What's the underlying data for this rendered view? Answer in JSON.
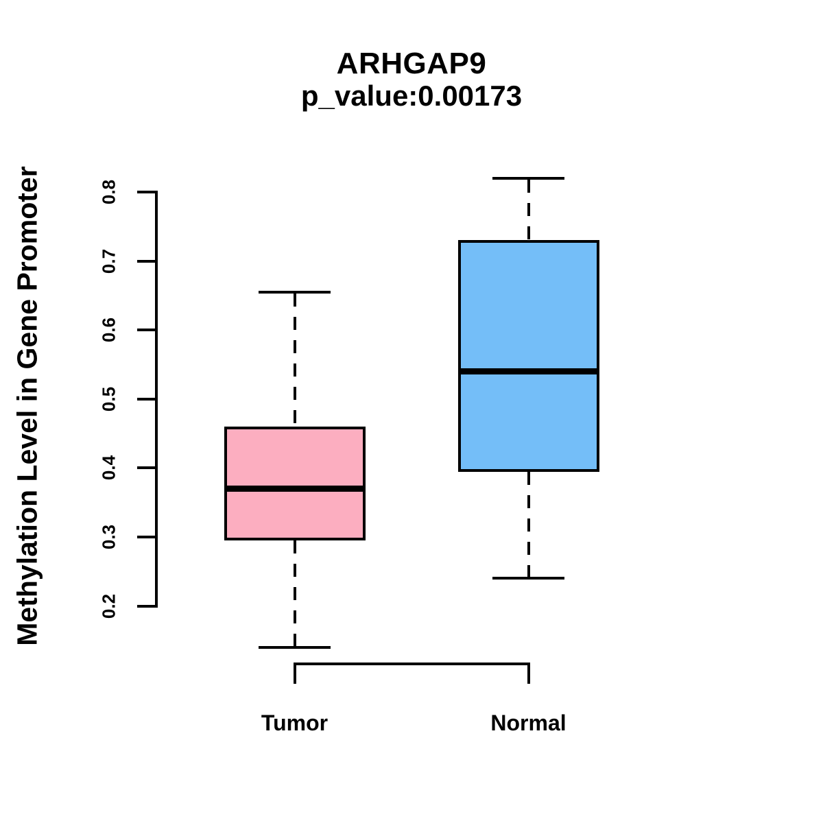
{
  "figure": {
    "background": "#ffffff",
    "text_color": "#000000"
  },
  "chart_data": {
    "type": "boxplot",
    "title": "ARHGAP9",
    "subtitle": "p_value:0.00173",
    "xlabel": "",
    "ylabel": "Methylation Level in Gene Promoter",
    "ylim": [
      0.2,
      0.8
    ],
    "yticks": [
      "0.2",
      "0.3",
      "0.4",
      "0.5",
      "0.6",
      "0.7",
      "0.8"
    ],
    "ytick_values": [
      0.2,
      0.3,
      0.4,
      0.5,
      0.6,
      0.7,
      0.8
    ],
    "categories": [
      "Tumor",
      "Normal"
    ],
    "grid": "off",
    "legend": "none",
    "whisker_style": "dashed",
    "box_border_color": "#000000",
    "median_color": "#000000",
    "series": [
      {
        "name": "Tumor",
        "fill": "#FCAEC0",
        "lower_whisker": 0.14,
        "q1": 0.295,
        "median": 0.37,
        "q3": 0.46,
        "upper_whisker": 0.655
      },
      {
        "name": "Normal",
        "fill": "#74BEF8",
        "lower_whisker": 0.24,
        "q1": 0.394,
        "median": 0.54,
        "q3": 0.73,
        "upper_whisker": 0.82
      }
    ]
  }
}
